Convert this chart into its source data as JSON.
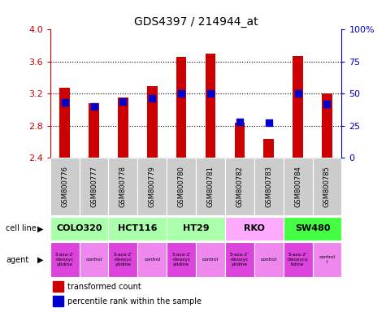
{
  "title": "GDS4397 / 214944_at",
  "samples": [
    "GSM800776",
    "GSM800777",
    "GSM800778",
    "GSM800779",
    "GSM800780",
    "GSM800781",
    "GSM800782",
    "GSM800783",
    "GSM800784",
    "GSM800785"
  ],
  "transformed_counts": [
    3.27,
    3.08,
    3.15,
    3.29,
    3.66,
    3.7,
    2.84,
    2.63,
    3.67,
    3.2
  ],
  "percentile_ranks": [
    43,
    40,
    44,
    46,
    50,
    50,
    28,
    27,
    50,
    42
  ],
  "ylim_left": [
    2.4,
    4.0
  ],
  "ylim_right": [
    0,
    100
  ],
  "yticks_left": [
    2.4,
    2.8,
    3.2,
    3.6,
    4.0
  ],
  "yticks_right": [
    0,
    25,
    50,
    75,
    100
  ],
  "ytick_labels_right": [
    "0",
    "25",
    "50",
    "75",
    "100%"
  ],
  "cell_lines": [
    {
      "name": "COLO320",
      "start": 0,
      "end": 2,
      "color": "#aaffaa"
    },
    {
      "name": "HCT116",
      "start": 2,
      "end": 4,
      "color": "#aaffaa"
    },
    {
      "name": "HT29",
      "start": 4,
      "end": 6,
      "color": "#aaffaa"
    },
    {
      "name": "RKO",
      "start": 6,
      "end": 8,
      "color": "#ffaaff"
    },
    {
      "name": "SW480",
      "start": 8,
      "end": 10,
      "color": "#44ff44"
    }
  ],
  "agent_names": [
    "5-aza-2'\n-deoxyc\nytidine",
    "control",
    "5-aza-2'\n-deoxyc\nytidine",
    "control",
    "5-aza-2'\n-deoxyc\nytidine",
    "control",
    "5-aza-2'\n-deoxyc\nytidine",
    "control",
    "5-aza-2'\n-deoxycy\ntidine",
    "control\nl"
  ],
  "agent_drug_color": "#dd44dd",
  "agent_control_color": "#ee88ee",
  "bar_color": "#cc0000",
  "dot_color": "#0000cc",
  "grid_color": "#000000",
  "sample_bg_color": "#cccccc",
  "ylabel_left_color": "#cc0000",
  "ylabel_right_color": "#0000cc",
  "bar_width": 0.35
}
